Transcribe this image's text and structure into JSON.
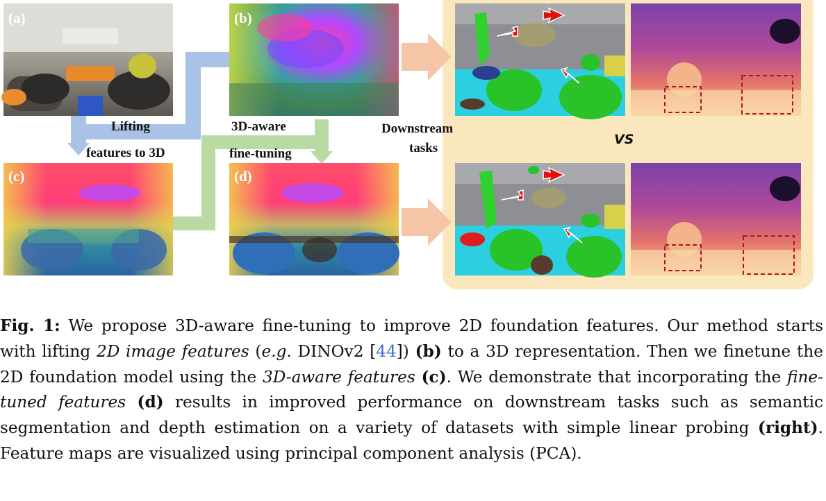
{
  "panels": {
    "a": "(a)",
    "b": "(b)",
    "c": "(c)",
    "d": "(d)"
  },
  "flow_labels": {
    "lifting_1": "Lifting",
    "lifting_2": "features to 3D",
    "aware_1": "3D-aware",
    "aware_2": "fine-tuning",
    "down_1": "Downstream",
    "down_2": "tasks",
    "vs": "VS"
  },
  "caption": {
    "fig": "Fig. 1:",
    "t1": " We propose 3D-aware fine-tuning to improve 2D foundation features. Our method starts with lifting ",
    "t2": "2D image features",
    "t3": " (",
    "t4": "e.g.",
    "t5": " DINOv2 [",
    "cite": "44",
    "t6": "]) ",
    "t7": "(b)",
    "t8": " to a 3D representation. Then we finetune the 2D foundation model using the ",
    "t9": "3D-aware features",
    "t10": " ",
    "t11": "(c)",
    "t12": ". We demonstrate that incorporating the ",
    "t13": "fine-tuned features",
    "t14": " ",
    "t15": "(d)",
    "t16": " results in improved performance on downstream tasks such as semantic segmentation and depth estimation on a variety of datasets with simple linear probing ",
    "t17": "(right)",
    "t18": ". Feature maps are visualized using principal component analysis (PCA)."
  },
  "colors": {
    "blue_arrow": "#a9c2e6",
    "green_arrow": "#b9dba3",
    "salmon_arrow": "#f6c5a8",
    "box_fill": "#fbe7bd",
    "red_arrow": "#e01010",
    "dash_box": "#b81414"
  }
}
